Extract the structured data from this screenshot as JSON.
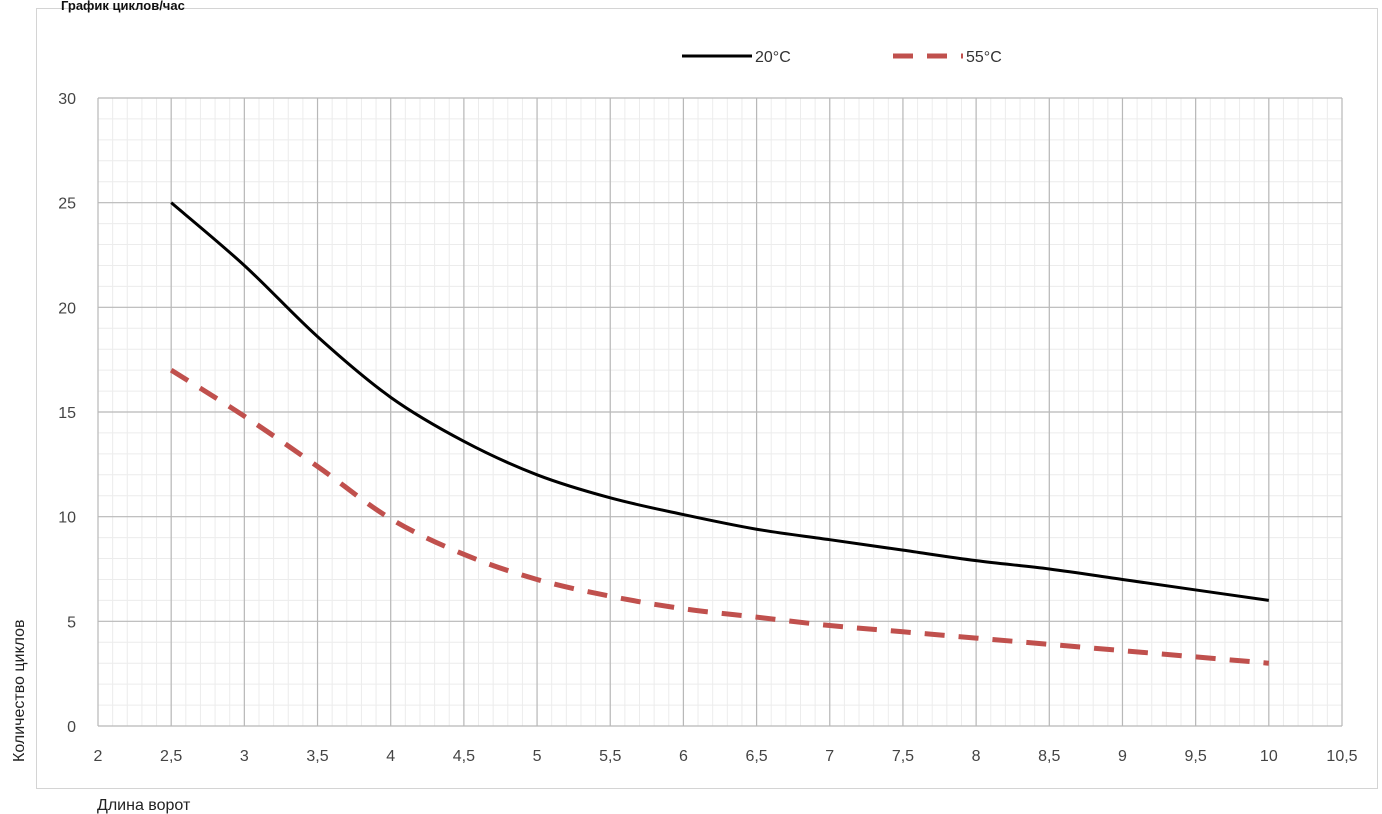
{
  "chart_data": {
    "type": "line",
    "title": "График циклов/час",
    "xlabel": "Длина ворот",
    "ylabel": "Количество циклов",
    "xlim": [
      2,
      10.5
    ],
    "ylim": [
      0,
      30
    ],
    "x_ticks": [
      "2",
      "2,5",
      "3",
      "3,5",
      "4",
      "4,5",
      "5",
      "5,5",
      "6",
      "6,5",
      "7",
      "7,5",
      "8",
      "8,5",
      "9",
      "9,5",
      "10",
      "10,5"
    ],
    "y_ticks": [
      "0",
      "5",
      "10",
      "15",
      "20",
      "25",
      "30"
    ],
    "grid": true,
    "legend_position": "top",
    "series": [
      {
        "name": "20°C",
        "color": "#000000",
        "style": "solid",
        "x": [
          2.5,
          3,
          3.5,
          4,
          4.5,
          5,
          5.5,
          6,
          6.5,
          7,
          7.5,
          8,
          8.5,
          9,
          9.5,
          10
        ],
        "y": [
          25,
          22,
          18.6,
          15.7,
          13.6,
          12,
          10.9,
          10.1,
          9.4,
          8.9,
          8.4,
          7.9,
          7.5,
          7,
          6.5,
          6
        ]
      },
      {
        "name": "55°C",
        "color": "#c0504d",
        "style": "dashed",
        "x": [
          2.5,
          3,
          3.5,
          4,
          4.5,
          5,
          5.5,
          6,
          6.5,
          7,
          7.5,
          8,
          8.5,
          9,
          9.5,
          10
        ],
        "y": [
          17,
          14.8,
          12.4,
          9.9,
          8.2,
          7,
          6.2,
          5.6,
          5.2,
          4.8,
          4.5,
          4.2,
          3.9,
          3.6,
          3.3,
          3
        ]
      }
    ]
  }
}
